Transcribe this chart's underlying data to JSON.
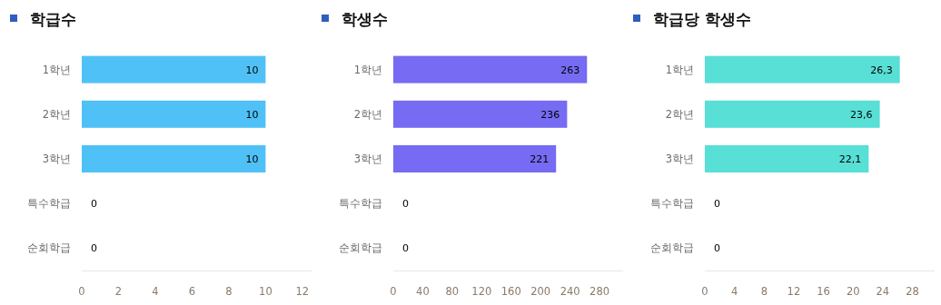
{
  "chart_data": [
    {
      "type": "bar",
      "orientation": "horizontal",
      "title": "학급수",
      "categories": [
        "1학년",
        "2학년",
        "3학년",
        "특수학급",
        "순회학급"
      ],
      "values": [
        10,
        10,
        10,
        0,
        0
      ],
      "color": "#4fc1f7",
      "xlim": [
        0,
        12.5
      ],
      "xticks": [
        0,
        2,
        4,
        6,
        8,
        10,
        12
      ],
      "data_labels": true,
      "grid": false
    },
    {
      "type": "bar",
      "orientation": "horizontal",
      "title": "학생수",
      "categories": [
        "1학년",
        "2학년",
        "3학년",
        "특수학급",
        "순회학급"
      ],
      "values": [
        263,
        236,
        221,
        0,
        0
      ],
      "color": "#766bf2",
      "xlim": [
        0,
        312
      ],
      "xticks": [
        0,
        40,
        80,
        120,
        160,
        200,
        240,
        280
      ],
      "data_labels": true,
      "grid": false
    },
    {
      "type": "bar",
      "orientation": "horizontal",
      "title": "학급당 학생수",
      "categories": [
        "1학년",
        "2학년",
        "3학년",
        "특수학급",
        "순회학급"
      ],
      "values": [
        26.3,
        23.6,
        22.1,
        0,
        0
      ],
      "value_labels": [
        "26,3",
        "23,6",
        "22,1",
        "0",
        "0"
      ],
      "color": "#58dfd6",
      "xlim": [
        0,
        31
      ],
      "xticks": [
        0,
        4,
        8,
        12,
        16,
        20,
        24,
        28
      ],
      "grid": false
    }
  ]
}
